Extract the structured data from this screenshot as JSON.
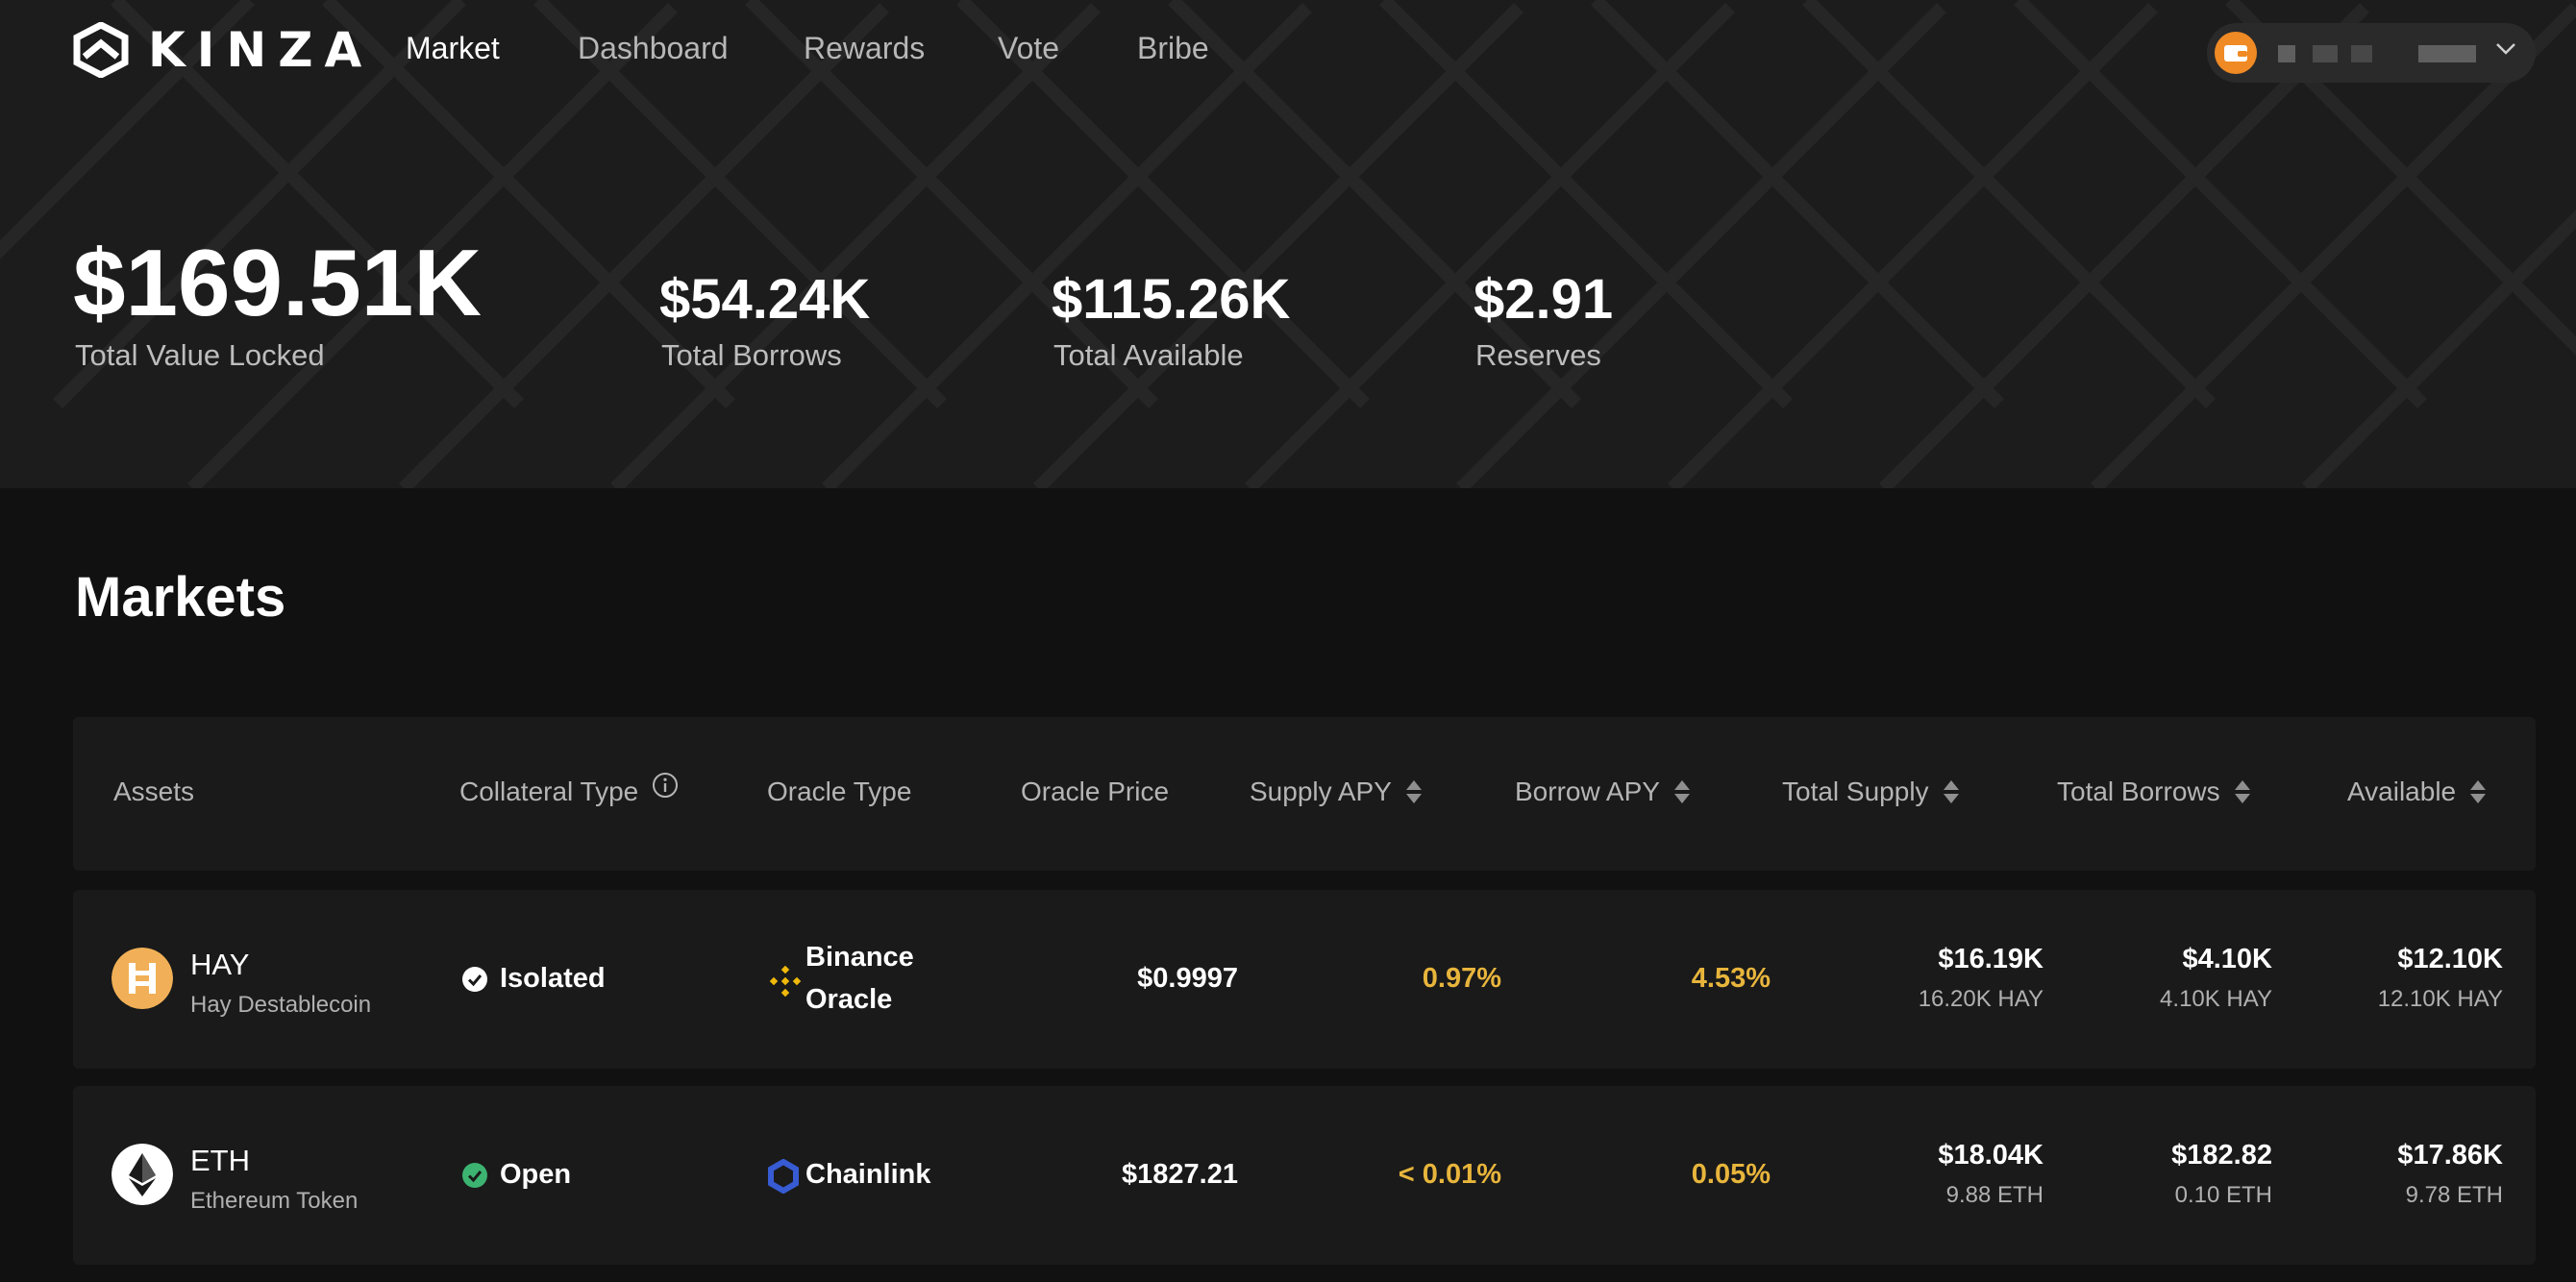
{
  "brand": {
    "name": "KINZA"
  },
  "nav": {
    "items": [
      {
        "label": "Market",
        "active": true
      },
      {
        "label": "Dashboard",
        "active": false
      },
      {
        "label": "Rewards",
        "active": false
      },
      {
        "label": "Vote",
        "active": false
      },
      {
        "label": "Bribe",
        "active": false
      }
    ]
  },
  "wallet": {
    "icon": "wallet-icon",
    "accent": "#f08a24"
  },
  "stats": {
    "tvl": {
      "value": "$169.51K",
      "label": "Total Value Locked"
    },
    "borrows": {
      "value": "$54.24K",
      "label": "Total Borrows"
    },
    "available": {
      "value": "$115.26K",
      "label": "Total Available"
    },
    "reserves": {
      "value": "$2.91",
      "label": "Reserves"
    }
  },
  "markets": {
    "title": "Markets",
    "columns": {
      "assets": "Assets",
      "collateral": "Collateral Type",
      "oracle_type": "Oracle Type",
      "oracle_price": "Oracle Price",
      "supply_apy": "Supply APY",
      "borrow_apy": "Borrow APY",
      "total_supply": "Total Supply",
      "total_borrows": "Total Borrows",
      "available": "Available"
    },
    "rows": [
      {
        "symbol": "HAY",
        "name": "Hay Destablecoin",
        "collateral": "Isolated",
        "oracle_line1": "Binance",
        "oracle_line2": "Oracle",
        "oracle_price": "$0.9997",
        "supply_apy": "0.97%",
        "borrow_apy": "4.53%",
        "total_supply_usd": "$16.19K",
        "total_supply_token": "16.20K HAY",
        "total_borrows_usd": "$4.10K",
        "total_borrows_token": "4.10K HAY",
        "available_usd": "$12.10K",
        "available_token": "12.10K HAY"
      },
      {
        "symbol": "ETH",
        "name": "Ethereum Token",
        "collateral": "Open",
        "oracle_line1": "Chainlink",
        "oracle_price": "$1827.21",
        "supply_apy": "< 0.01%",
        "borrow_apy": "0.05%",
        "total_supply_usd": "$18.04K",
        "total_supply_token": "9.88 ETH",
        "total_borrows_usd": "$182.82",
        "total_borrows_token": "0.10 ETH",
        "available_usd": "$17.86K",
        "available_token": "9.78 ETH"
      }
    ]
  },
  "colors": {
    "apy": "#e8b53c",
    "open_check": "#3cb371",
    "hay_icon": "#f1b057",
    "binance": "#f0b90b",
    "chainlink": "#375bd2"
  }
}
